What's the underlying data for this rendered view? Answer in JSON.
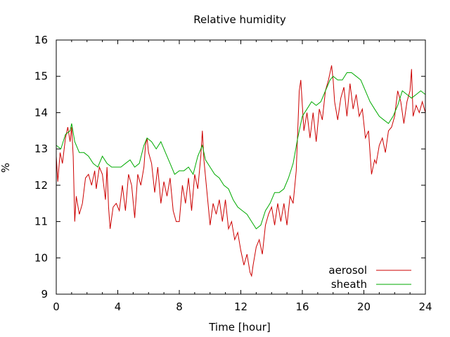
{
  "chart_data": {
    "type": "line",
    "title": "Relative humidity",
    "xlabel": "Time [hour]",
    "ylabel": "%",
    "xlim": [
      0,
      24
    ],
    "ylim": [
      9,
      16
    ],
    "x_ticks": [
      0,
      4,
      8,
      12,
      16,
      20,
      24
    ],
    "y_ticks": [
      9,
      10,
      11,
      12,
      13,
      14,
      15,
      16
    ],
    "x_tick_labels": [
      "0",
      "4",
      "8",
      "12",
      "16",
      "20",
      "24"
    ],
    "y_tick_labels": [
      "9",
      "10",
      "11",
      "12",
      "13",
      "14",
      "15",
      "16"
    ],
    "grid": false,
    "legend_position": "bottom-right",
    "series": [
      {
        "name": "aerosol",
        "color": "#cc0000",
        "x": [
          0,
          0.1,
          0.25,
          0.4,
          0.6,
          0.75,
          0.9,
          1.0,
          1.1,
          1.2,
          1.3,
          1.5,
          1.7,
          1.9,
          2.1,
          2.3,
          2.5,
          2.6,
          2.8,
          3.0,
          3.2,
          3.3,
          3.4,
          3.5,
          3.7,
          3.9,
          4.1,
          4.3,
          4.5,
          4.7,
          4.9,
          5.1,
          5.3,
          5.5,
          5.7,
          5.8,
          5.9,
          6.0,
          6.2,
          6.4,
          6.6,
          6.8,
          7.0,
          7.2,
          7.4,
          7.6,
          7.8,
          8.0,
          8.2,
          8.4,
          8.6,
          8.8,
          9.0,
          9.2,
          9.4,
          9.5,
          9.6,
          9.8,
          10.0,
          10.2,
          10.4,
          10.6,
          10.8,
          11.0,
          11.2,
          11.4,
          11.6,
          11.8,
          12.0,
          12.2,
          12.4,
          12.6,
          12.7,
          12.8,
          13.0,
          13.2,
          13.4,
          13.6,
          13.8,
          14.0,
          14.2,
          14.4,
          14.6,
          14.8,
          15.0,
          15.2,
          15.4,
          15.6,
          15.8,
          15.9,
          16.0,
          16.1,
          16.3,
          16.5,
          16.7,
          16.9,
          17.1,
          17.3,
          17.5,
          17.7,
          17.9,
          18.0,
          18.1,
          18.3,
          18.5,
          18.7,
          18.9,
          19.1,
          19.3,
          19.5,
          19.7,
          19.9,
          20.1,
          20.3,
          20.5,
          20.7,
          20.8,
          21.0,
          21.2,
          21.4,
          21.6,
          21.8,
          22.0,
          22.2,
          22.4,
          22.6,
          22.8,
          23.0,
          23.1,
          23.2,
          23.4,
          23.6,
          23.8,
          24.0
        ],
        "y": [
          12.8,
          12.1,
          12.9,
          12.6,
          13.3,
          13.6,
          13.2,
          13.6,
          12.8,
          11.0,
          11.7,
          11.2,
          11.5,
          12.2,
          12.3,
          12.0,
          12.4,
          11.9,
          12.5,
          12.3,
          11.6,
          12.5,
          11.4,
          10.8,
          11.4,
          11.5,
          11.3,
          12.0,
          11.3,
          12.3,
          12.0,
          11.1,
          12.3,
          12.0,
          12.5,
          13.1,
          13.3,
          12.9,
          12.6,
          11.8,
          12.5,
          11.5,
          12.1,
          11.7,
          12.2,
          11.3,
          11.0,
          11.0,
          12.0,
          11.5,
          12.2,
          11.3,
          12.3,
          11.9,
          12.8,
          13.5,
          12.7,
          11.8,
          10.9,
          11.5,
          11.2,
          11.6,
          11.0,
          11.6,
          10.8,
          11.0,
          10.5,
          10.7,
          10.2,
          9.8,
          10.1,
          9.6,
          9.5,
          9.8,
          10.3,
          10.5,
          10.1,
          10.9,
          11.2,
          11.4,
          10.9,
          11.5,
          11.0,
          11.5,
          10.9,
          11.7,
          11.5,
          12.4,
          14.6,
          14.9,
          14.2,
          13.5,
          14.0,
          13.3,
          14.0,
          13.2,
          14.1,
          13.8,
          14.6,
          14.9,
          15.3,
          14.9,
          14.3,
          13.8,
          14.4,
          14.7,
          13.9,
          14.8,
          14.1,
          14.5,
          13.9,
          14.1,
          13.3,
          13.5,
          12.3,
          12.7,
          12.6,
          13.1,
          13.3,
          12.9,
          13.5,
          13.6,
          13.9,
          14.6,
          14.3,
          13.7,
          14.3,
          14.6,
          15.2,
          13.9,
          14.2,
          14.0,
          14.3,
          14.0
        ]
      },
      {
        "name": "sheath",
        "color": "#00aa00",
        "x": [
          0,
          0.3,
          0.6,
          0.9,
          1.0,
          1.2,
          1.5,
          1.8,
          2.1,
          2.4,
          2.7,
          3.0,
          3.3,
          3.6,
          3.9,
          4.2,
          4.5,
          4.8,
          5.1,
          5.4,
          5.7,
          5.9,
          6.2,
          6.5,
          6.8,
          7.1,
          7.4,
          7.7,
          8.0,
          8.3,
          8.6,
          8.9,
          9.2,
          9.5,
          9.7,
          10.0,
          10.3,
          10.6,
          10.9,
          11.2,
          11.5,
          11.8,
          12.1,
          12.4,
          12.7,
          13.0,
          13.3,
          13.6,
          13.9,
          14.2,
          14.5,
          14.8,
          15.1,
          15.4,
          15.7,
          16.0,
          16.3,
          16.6,
          16.9,
          17.2,
          17.5,
          17.8,
          18.0,
          18.3,
          18.6,
          18.9,
          19.2,
          19.5,
          19.8,
          20.1,
          20.4,
          20.7,
          21.0,
          21.3,
          21.6,
          21.9,
          22.2,
          22.5,
          22.8,
          23.1,
          23.4,
          23.7,
          24.0
        ],
        "y": [
          13.1,
          13.0,
          13.4,
          13.5,
          13.7,
          13.2,
          12.9,
          12.9,
          12.8,
          12.6,
          12.5,
          12.8,
          12.6,
          12.5,
          12.5,
          12.5,
          12.6,
          12.7,
          12.5,
          12.6,
          13.1,
          13.3,
          13.2,
          13.0,
          13.2,
          12.9,
          12.6,
          12.3,
          12.4,
          12.4,
          12.5,
          12.3,
          12.8,
          13.1,
          12.7,
          12.5,
          12.3,
          12.2,
          12.0,
          11.9,
          11.6,
          11.4,
          11.3,
          11.2,
          11.0,
          10.8,
          10.9,
          11.3,
          11.5,
          11.8,
          11.8,
          11.9,
          12.2,
          12.6,
          13.3,
          13.9,
          14.1,
          14.3,
          14.2,
          14.3,
          14.6,
          14.9,
          15.0,
          14.9,
          14.9,
          15.1,
          15.1,
          15.0,
          14.9,
          14.6,
          14.3,
          14.1,
          13.9,
          13.8,
          13.7,
          13.9,
          14.2,
          14.6,
          14.5,
          14.4,
          14.5,
          14.6,
          14.5
        ]
      }
    ]
  }
}
